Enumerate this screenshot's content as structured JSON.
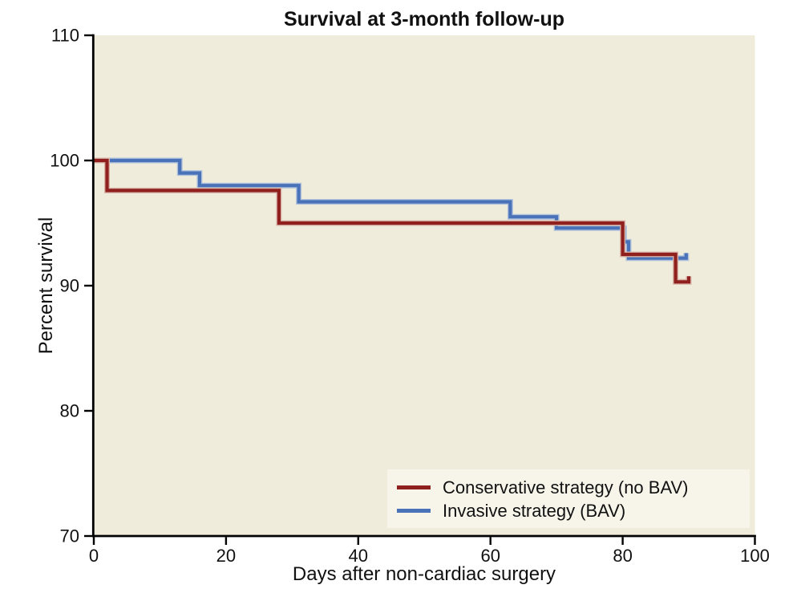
{
  "chart_data": {
    "type": "line",
    "subtype": "kaplan-meier-step-survival",
    "title": "Survival at 3-month follow-up",
    "xlabel": "Days after non-cardiac surgery",
    "ylabel": "Percent survival",
    "xlim": [
      0,
      100
    ],
    "ylim": [
      70,
      110
    ],
    "xticks": [
      0,
      20,
      40,
      60,
      80,
      100
    ],
    "yticks": [
      70,
      80,
      90,
      100,
      110
    ],
    "grid": "off",
    "plot_bg_color": "#efecdb",
    "axis_color": "#000000",
    "legend": {
      "position": "bottom-right-inside",
      "bg_color": "#f7f5ea"
    },
    "series": [
      {
        "name": "Conservative strategy (no BAV)",
        "color": "#8f201d",
        "halo_color": "#d8b3a8",
        "points": [
          [
            0,
            100
          ],
          [
            2,
            100
          ],
          [
            2,
            97.6
          ],
          [
            28,
            97.6
          ],
          [
            28,
            95.0
          ],
          [
            80,
            95.0
          ],
          [
            80,
            92.5
          ],
          [
            88,
            92.5
          ],
          [
            88,
            90.3
          ],
          [
            90,
            90.3
          ],
          [
            90,
            90.75
          ]
        ]
      },
      {
        "name": "Invasive strategy (BAV)",
        "color": "#4a72b8",
        "halo_color": "#aec0dc",
        "points": [
          [
            0,
            100
          ],
          [
            13,
            100
          ],
          [
            13,
            99.0
          ],
          [
            16,
            99.0
          ],
          [
            16,
            98.0
          ],
          [
            31,
            98.0
          ],
          [
            31,
            96.7
          ],
          [
            63,
            96.7
          ],
          [
            63,
            95.5
          ],
          [
            70,
            95.5
          ],
          [
            70,
            94.6
          ],
          [
            80.2,
            94.6
          ],
          [
            80.2,
            93.5
          ],
          [
            80.9,
            93.5
          ],
          [
            80.9,
            92.2
          ],
          [
            89.6,
            92.2
          ],
          [
            89.6,
            92.6
          ]
        ]
      }
    ]
  }
}
